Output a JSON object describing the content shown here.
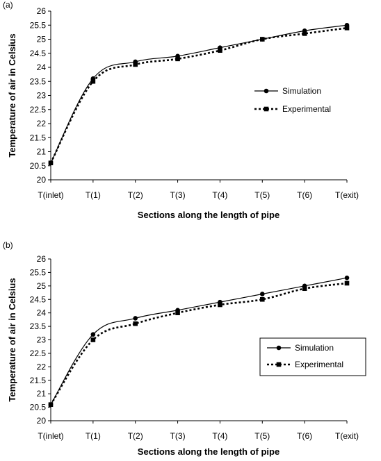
{
  "chart_data": [
    {
      "type": "line",
      "panel_label": "(a)",
      "categories": [
        "T(inlet)",
        "T(1)",
        "T(2)",
        "T(3)",
        "T(4)",
        "T(5)",
        "T(6)",
        "T(exit)"
      ],
      "series": [
        {
          "name": "Simulation",
          "values": [
            20.6,
            23.6,
            24.2,
            24.4,
            24.7,
            25.0,
            25.3,
            25.5
          ],
          "marker": "circle",
          "line": "solid"
        },
        {
          "name": "Experimental",
          "values": [
            20.6,
            23.5,
            24.1,
            24.3,
            24.6,
            25.0,
            25.2,
            25.4
          ],
          "marker": "square",
          "line": "dashed"
        }
      ],
      "ylim": [
        20,
        26
      ],
      "yticks": [
        "20",
        "20.5",
        "21",
        "21.5",
        "22",
        "22.5",
        "23",
        "23.5",
        "24",
        "24.5",
        "25",
        "25.5",
        "26"
      ],
      "xlabel": "Sections along the length of pipe",
      "ylabel": "Temperature of air in Celsius",
      "legend_position": "right",
      "legend_boxed": false
    },
    {
      "type": "line",
      "panel_label": "(b)",
      "categories": [
        "T(inlet)",
        "T(1)",
        "T(2)",
        "T(3)",
        "T(4)",
        "T(5)",
        "T(6)",
        "T(exit)"
      ],
      "series": [
        {
          "name": "Simulation",
          "values": [
            20.6,
            23.2,
            23.8,
            24.1,
            24.4,
            24.7,
            25.0,
            25.3
          ],
          "marker": "circle",
          "line": "solid"
        },
        {
          "name": "Experimental",
          "values": [
            20.6,
            23.0,
            23.6,
            24.0,
            24.3,
            24.5,
            24.9,
            25.1
          ],
          "marker": "square",
          "line": "dashed"
        }
      ],
      "ylim": [
        20,
        26
      ],
      "yticks": [
        "20",
        "20.5",
        "21",
        "21.5",
        "22",
        "22.5",
        "23",
        "23.5",
        "24",
        "24.5",
        "25",
        "25.5",
        "26"
      ],
      "xlabel": "Sections along the length of pipe",
      "ylabel": "Temperature of air in Celsius",
      "legend_position": "right",
      "legend_boxed": true
    }
  ]
}
